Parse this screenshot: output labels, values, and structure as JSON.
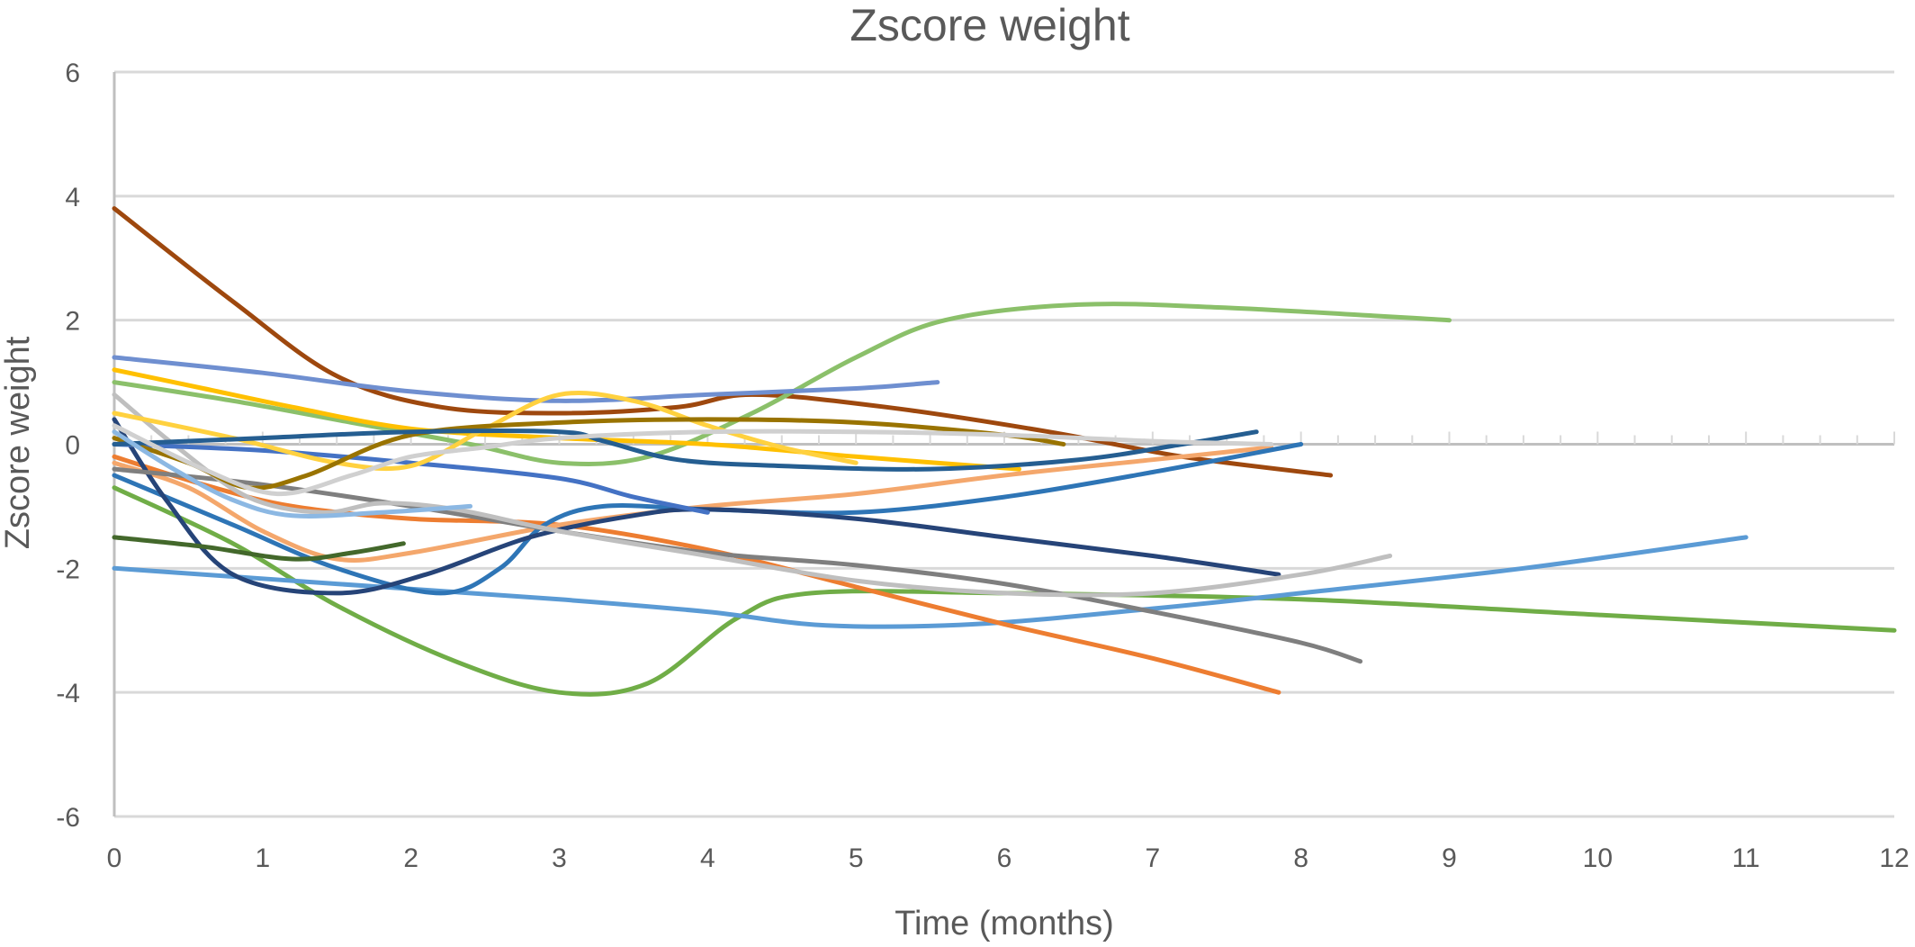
{
  "chart_data": {
    "type": "line",
    "title": "Zscore weight",
    "xlabel": "Time (months)",
    "ylabel": "Zscore weight",
    "xlim": [
      0,
      12
    ],
    "ylim": [
      -6,
      6
    ],
    "x_ticks": [
      "0",
      "1",
      "2",
      "3",
      "4",
      "5",
      "6",
      "7",
      "8",
      "9",
      "10",
      "11",
      "12"
    ],
    "y_ticks": [
      "6",
      "4",
      "2",
      "0",
      "-2",
      "-4",
      "-6"
    ],
    "x_minor_step": 0.25,
    "grid": true,
    "legend": "none",
    "series": [
      {
        "color": "#9E480E",
        "points": [
          [
            0,
            3.8
          ],
          [
            0.8,
            2.3
          ],
          [
            1.5,
            1.1
          ],
          [
            2.2,
            0.6
          ],
          [
            3.0,
            0.5
          ],
          [
            3.8,
            0.6
          ],
          [
            4.3,
            0.8
          ],
          [
            5.2,
            0.6
          ],
          [
            6.3,
            0.2
          ],
          [
            7.2,
            -0.2
          ],
          [
            8.2,
            -0.5
          ]
        ]
      },
      {
        "color": "#70AD47",
        "points": [
          [
            0,
            -0.7
          ],
          [
            0.8,
            -1.6
          ],
          [
            1.5,
            -2.6
          ],
          [
            2.3,
            -3.5
          ],
          [
            3.0,
            -4.0
          ],
          [
            3.6,
            -3.85
          ],
          [
            4.2,
            -2.8
          ],
          [
            4.7,
            -2.4
          ],
          [
            6.0,
            -2.4
          ],
          [
            8.0,
            -2.5
          ],
          [
            10.0,
            -2.75
          ],
          [
            12.0,
            -3.0
          ]
        ]
      },
      {
        "color": "#8BC06A",
        "points": [
          [
            0,
            1.0
          ],
          [
            0.8,
            0.7
          ],
          [
            1.6,
            0.35
          ],
          [
            2.4,
            0.0
          ],
          [
            3.0,
            -0.3
          ],
          [
            3.6,
            -0.2
          ],
          [
            4.3,
            0.5
          ],
          [
            5.0,
            1.4
          ],
          [
            5.6,
            2.0
          ],
          [
            6.5,
            2.25
          ],
          [
            7.5,
            2.2
          ],
          [
            9.0,
            2.0
          ]
        ]
      },
      {
        "color": "#5B9BD5",
        "points": [
          [
            0,
            -2.0
          ],
          [
            1.5,
            -2.25
          ],
          [
            3.0,
            -2.5
          ],
          [
            4.0,
            -2.7
          ],
          [
            4.8,
            -2.92
          ],
          [
            5.8,
            -2.9
          ],
          [
            7.0,
            -2.65
          ],
          [
            8.0,
            -2.4
          ],
          [
            9.5,
            -2.0
          ],
          [
            11.0,
            -1.5
          ]
        ]
      },
      {
        "color": "#ED7D31",
        "points": [
          [
            0,
            -0.2
          ],
          [
            0.6,
            -0.65
          ],
          [
            1.2,
            -1.0
          ],
          [
            2.0,
            -1.2
          ],
          [
            3.0,
            -1.3
          ],
          [
            4.0,
            -1.7
          ],
          [
            5.0,
            -2.3
          ],
          [
            6.0,
            -2.9
          ],
          [
            7.0,
            -3.45
          ],
          [
            7.85,
            -4.0
          ]
        ]
      },
      {
        "color": "#F4A76C",
        "points": [
          [
            0,
            -0.3
          ],
          [
            0.5,
            -0.7
          ],
          [
            1.0,
            -1.4
          ],
          [
            1.5,
            -1.85
          ],
          [
            2.0,
            -1.75
          ],
          [
            3.0,
            -1.3
          ],
          [
            4.0,
            -1.0
          ],
          [
            5.0,
            -0.8
          ],
          [
            6.0,
            -0.5
          ],
          [
            7.0,
            -0.25
          ],
          [
            7.8,
            -0.05
          ]
        ]
      },
      {
        "color": "#2E75B6",
        "points": [
          [
            0,
            -0.5
          ],
          [
            0.8,
            -1.3
          ],
          [
            1.5,
            -2.0
          ],
          [
            2.2,
            -2.4
          ],
          [
            2.6,
            -2.0
          ],
          [
            2.9,
            -1.3
          ],
          [
            3.3,
            -1.0
          ],
          [
            4.0,
            -1.05
          ],
          [
            5.0,
            -1.1
          ],
          [
            6.0,
            -0.85
          ],
          [
            7.0,
            -0.45
          ],
          [
            8.0,
            0.0
          ]
        ]
      },
      {
        "color": "#264478",
        "points": [
          [
            0,
            0.4
          ],
          [
            0.35,
            -0.9
          ],
          [
            0.8,
            -2.1
          ],
          [
            1.5,
            -2.4
          ],
          [
            2.1,
            -2.1
          ],
          [
            2.8,
            -1.5
          ],
          [
            3.5,
            -1.15
          ],
          [
            4.0,
            -1.05
          ],
          [
            5.0,
            -1.2
          ],
          [
            6.0,
            -1.5
          ],
          [
            7.0,
            -1.8
          ],
          [
            7.85,
            -2.1
          ]
        ]
      },
      {
        "color": "#7F7F7F",
        "points": [
          [
            0,
            -0.4
          ],
          [
            1.0,
            -0.65
          ],
          [
            2.0,
            -1.0
          ],
          [
            3.0,
            -1.4
          ],
          [
            4.0,
            -1.75
          ],
          [
            5.0,
            -1.95
          ],
          [
            6.0,
            -2.25
          ],
          [
            7.0,
            -2.7
          ],
          [
            8.0,
            -3.2
          ],
          [
            8.4,
            -3.5
          ]
        ]
      },
      {
        "color": "#BFBFBF",
        "points": [
          [
            0,
            0.8
          ],
          [
            0.4,
            0.0
          ],
          [
            0.9,
            -0.85
          ],
          [
            1.4,
            -1.1
          ],
          [
            1.8,
            -0.95
          ],
          [
            2.3,
            -1.05
          ],
          [
            3.0,
            -1.4
          ],
          [
            4.0,
            -1.8
          ],
          [
            5.0,
            -2.2
          ],
          [
            6.0,
            -2.4
          ],
          [
            7.0,
            -2.4
          ],
          [
            8.0,
            -2.1
          ],
          [
            8.6,
            -1.8
          ]
        ]
      },
      {
        "color": "#4472C4",
        "points": [
          [
            0,
            0.0
          ],
          [
            1.0,
            -0.1
          ],
          [
            2.0,
            -0.3
          ],
          [
            3.0,
            -0.55
          ],
          [
            3.5,
            -0.85
          ],
          [
            4.0,
            -1.1
          ]
        ]
      },
      {
        "color": "#6F8FD0",
        "points": [
          [
            0,
            1.4
          ],
          [
            1.0,
            1.15
          ],
          [
            2.0,
            0.85
          ],
          [
            3.0,
            0.7
          ],
          [
            4.0,
            0.8
          ],
          [
            5.0,
            0.9
          ],
          [
            5.55,
            1.0
          ]
        ]
      },
      {
        "color": "#FFC000",
        "points": [
          [
            0,
            1.2
          ],
          [
            0.6,
            0.9
          ],
          [
            1.2,
            0.6
          ],
          [
            2.0,
            0.25
          ],
          [
            3.0,
            0.1
          ],
          [
            4.0,
            0.0
          ],
          [
            5.0,
            -0.2
          ],
          [
            6.1,
            -0.4
          ]
        ]
      },
      {
        "color": "#FFD13F",
        "points": [
          [
            0,
            0.5
          ],
          [
            0.8,
            0.1
          ],
          [
            1.5,
            -0.3
          ],
          [
            2.0,
            -0.35
          ],
          [
            2.5,
            0.25
          ],
          [
            3.0,
            0.8
          ],
          [
            3.5,
            0.7
          ],
          [
            4.0,
            0.3
          ],
          [
            4.5,
            -0.05
          ],
          [
            5.0,
            -0.3
          ]
        ]
      },
      {
        "color": "#997300",
        "points": [
          [
            0,
            0.1
          ],
          [
            0.5,
            -0.3
          ],
          [
            0.9,
            -0.7
          ],
          [
            1.3,
            -0.5
          ],
          [
            2.0,
            0.15
          ],
          [
            3.0,
            0.35
          ],
          [
            4.0,
            0.4
          ],
          [
            5.0,
            0.35
          ],
          [
            6.0,
            0.15
          ],
          [
            6.4,
            0.0
          ]
        ]
      },
      {
        "color": "#255E91",
        "points": [
          [
            0,
            0.0
          ],
          [
            1.0,
            0.1
          ],
          [
            2.0,
            0.2
          ],
          [
            3.0,
            0.2
          ],
          [
            3.3,
            0.05
          ],
          [
            3.8,
            -0.25
          ],
          [
            4.5,
            -0.35
          ],
          [
            5.5,
            -0.4
          ],
          [
            6.5,
            -0.25
          ],
          [
            7.2,
            0.0
          ],
          [
            7.7,
            0.2
          ]
        ]
      },
      {
        "color": "#D0D0D0",
        "points": [
          [
            0,
            0.3
          ],
          [
            0.6,
            -0.4
          ],
          [
            1.1,
            -0.8
          ],
          [
            1.6,
            -0.5
          ],
          [
            2.0,
            -0.2
          ],
          [
            2.5,
            -0.05
          ],
          [
            3.0,
            0.1
          ],
          [
            4.0,
            0.2
          ],
          [
            5.0,
            0.2
          ],
          [
            6.0,
            0.15
          ],
          [
            7.0,
            0.05
          ],
          [
            7.8,
            0.0
          ]
        ]
      },
      {
        "color": "#43682B",
        "points": [
          [
            0,
            -1.5
          ],
          [
            0.6,
            -1.65
          ],
          [
            1.2,
            -1.85
          ],
          [
            1.6,
            -1.75
          ],
          [
            1.95,
            -1.6
          ]
        ]
      },
      {
        "color": "#8CB8E3",
        "points": [
          [
            0,
            0.2
          ],
          [
            0.4,
            -0.4
          ],
          [
            0.8,
            -0.9
          ],
          [
            1.2,
            -1.15
          ],
          [
            1.8,
            -1.1
          ],
          [
            2.4,
            -1.0
          ]
        ]
      }
    ]
  }
}
